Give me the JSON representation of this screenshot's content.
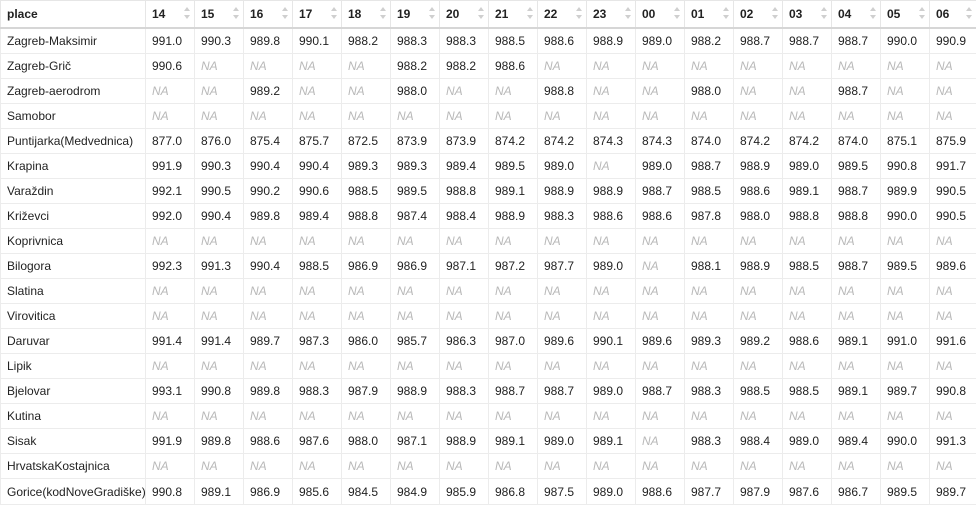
{
  "columns": [
    "place",
    "14",
    "15",
    "16",
    "17",
    "18",
    "19",
    "20",
    "21",
    "22",
    "23",
    "00",
    "01",
    "02",
    "03",
    "04",
    "05",
    "06"
  ],
  "na_text": "NA",
  "rows": [
    {
      "place": "Zagreb-Maksimir",
      "values": [
        "991.0",
        "990.3",
        "989.8",
        "990.1",
        "988.2",
        "988.3",
        "988.3",
        "988.5",
        "988.6",
        "988.9",
        "989.0",
        "988.2",
        "988.7",
        "988.7",
        "988.7",
        "990.0",
        "990.9"
      ]
    },
    {
      "place": "Zagreb-Grič",
      "values": [
        "990.6",
        "NA",
        "NA",
        "NA",
        "NA",
        "988.2",
        "988.2",
        "988.6",
        "NA",
        "NA",
        "NA",
        "NA",
        "NA",
        "NA",
        "NA",
        "NA",
        "NA"
      ]
    },
    {
      "place": "Zagreb-aerodrom",
      "values": [
        "NA",
        "NA",
        "989.2",
        "NA",
        "NA",
        "988.0",
        "NA",
        "NA",
        "988.8",
        "NA",
        "NA",
        "988.0",
        "NA",
        "NA",
        "988.7",
        "NA",
        "NA"
      ]
    },
    {
      "place": "Samobor",
      "values": [
        "NA",
        "NA",
        "NA",
        "NA",
        "NA",
        "NA",
        "NA",
        "NA",
        "NA",
        "NA",
        "NA",
        "NA",
        "NA",
        "NA",
        "NA",
        "NA",
        "NA"
      ]
    },
    {
      "place": "Puntijarka(Medvednica)",
      "values": [
        "877.0",
        "876.0",
        "875.4",
        "875.7",
        "872.5",
        "873.9",
        "873.9",
        "874.2",
        "874.2",
        "874.3",
        "874.3",
        "874.0",
        "874.2",
        "874.2",
        "874.0",
        "875.1",
        "875.9"
      ]
    },
    {
      "place": "Krapina",
      "values": [
        "991.9",
        "990.3",
        "990.4",
        "990.4",
        "989.3",
        "989.3",
        "989.4",
        "989.5",
        "989.0",
        "NA",
        "989.0",
        "988.7",
        "988.9",
        "989.0",
        "989.5",
        "990.8",
        "991.7"
      ]
    },
    {
      "place": "Varaždin",
      "values": [
        "992.1",
        "990.5",
        "990.2",
        "990.6",
        "988.5",
        "989.5",
        "988.8",
        "989.1",
        "988.9",
        "988.9",
        "988.7",
        "988.5",
        "988.6",
        "989.1",
        "988.7",
        "989.9",
        "990.5"
      ]
    },
    {
      "place": "Križevci",
      "values": [
        "992.0",
        "990.4",
        "989.8",
        "989.4",
        "988.8",
        "987.4",
        "988.4",
        "988.9",
        "988.3",
        "988.6",
        "988.6",
        "987.8",
        "988.0",
        "988.8",
        "988.8",
        "990.0",
        "990.5"
      ]
    },
    {
      "place": "Koprivnica",
      "values": [
        "NA",
        "NA",
        "NA",
        "NA",
        "NA",
        "NA",
        "NA",
        "NA",
        "NA",
        "NA",
        "NA",
        "NA",
        "NA",
        "NA",
        "NA",
        "NA",
        "NA"
      ]
    },
    {
      "place": "Bilogora",
      "values": [
        "992.3",
        "991.3",
        "990.4",
        "988.5",
        "986.9",
        "986.9",
        "987.1",
        "987.2",
        "987.7",
        "989.0",
        "NA",
        "988.1",
        "988.9",
        "988.5",
        "988.7",
        "989.5",
        "989.6"
      ]
    },
    {
      "place": "Slatina",
      "values": [
        "NA",
        "NA",
        "NA",
        "NA",
        "NA",
        "NA",
        "NA",
        "NA",
        "NA",
        "NA",
        "NA",
        "NA",
        "NA",
        "NA",
        "NA",
        "NA",
        "NA"
      ]
    },
    {
      "place": "Virovitica",
      "values": [
        "NA",
        "NA",
        "NA",
        "NA",
        "NA",
        "NA",
        "NA",
        "NA",
        "NA",
        "NA",
        "NA",
        "NA",
        "NA",
        "NA",
        "NA",
        "NA",
        "NA"
      ]
    },
    {
      "place": "Daruvar",
      "values": [
        "991.4",
        "991.4",
        "989.7",
        "987.3",
        "986.0",
        "985.7",
        "986.3",
        "987.0",
        "989.6",
        "990.1",
        "989.6",
        "989.3",
        "989.2",
        "988.6",
        "989.1",
        "991.0",
        "991.6"
      ]
    },
    {
      "place": "Lipik",
      "values": [
        "NA",
        "NA",
        "NA",
        "NA",
        "NA",
        "NA",
        "NA",
        "NA",
        "NA",
        "NA",
        "NA",
        "NA",
        "NA",
        "NA",
        "NA",
        "NA",
        "NA"
      ]
    },
    {
      "place": "Bjelovar",
      "values": [
        "993.1",
        "990.8",
        "989.8",
        "988.3",
        "987.9",
        "988.9",
        "988.3",
        "988.7",
        "988.7",
        "989.0",
        "988.7",
        "988.3",
        "988.5",
        "988.5",
        "989.1",
        "989.7",
        "990.8"
      ]
    },
    {
      "place": "Kutina",
      "values": [
        "NA",
        "NA",
        "NA",
        "NA",
        "NA",
        "NA",
        "NA",
        "NA",
        "NA",
        "NA",
        "NA",
        "NA",
        "NA",
        "NA",
        "NA",
        "NA",
        "NA"
      ]
    },
    {
      "place": "Sisak",
      "values": [
        "991.9",
        "989.8",
        "988.6",
        "987.6",
        "988.0",
        "987.1",
        "988.9",
        "989.1",
        "989.0",
        "989.1",
        "NA",
        "988.3",
        "988.4",
        "989.0",
        "989.4",
        "990.0",
        "991.3"
      ]
    },
    {
      "place": "HrvatskaKostajnica",
      "values": [
        "NA",
        "NA",
        "NA",
        "NA",
        "NA",
        "NA",
        "NA",
        "NA",
        "NA",
        "NA",
        "NA",
        "NA",
        "NA",
        "NA",
        "NA",
        "NA",
        "NA"
      ]
    },
    {
      "place": "Gorice(kodNoveGradiške)",
      "values": [
        "990.8",
        "989.1",
        "986.9",
        "985.6",
        "984.5",
        "984.9",
        "985.9",
        "986.8",
        "987.5",
        "989.0",
        "988.6",
        "987.7",
        "987.9",
        "987.6",
        "986.7",
        "989.5",
        "989.7"
      ]
    }
  ]
}
